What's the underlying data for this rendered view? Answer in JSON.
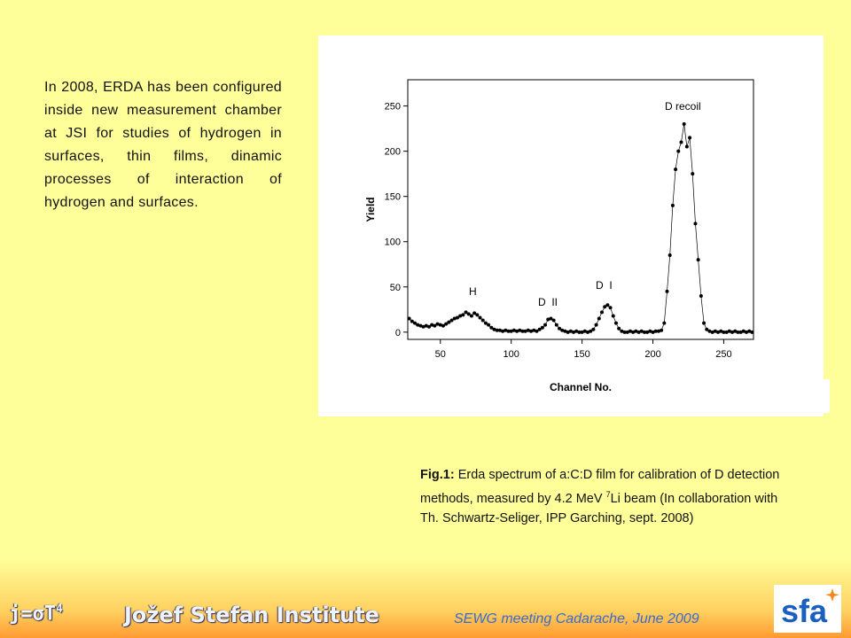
{
  "body_text": "In 2008, ERDA has been configured inside new measurement chamber at JSI for studies of hydrogen in surfaces, thin films, dinamic processes of interaction of hydrogen and surfaces.",
  "caption": {
    "label": "Fig.1:",
    "text_before": " Erda spectrum of a:C:D film for calibration of D detection methods, measured by 4.2 MeV ",
    "superscript": "7",
    "text_after": "Li beam (In collaboration with Th. Schwartz-Seliger, IPP Garching, sept. 2008)"
  },
  "footer": {
    "formula": "j=σT",
    "formula_superscript": "4",
    "institute": "Jožef Stefan Institute",
    "meeting": "SEWG meeting Cadarache, June 2009",
    "logo": "sfa"
  },
  "chart_data": {
    "type": "line",
    "xlabel": "Channel No.",
    "ylabel": "Yield",
    "xlim": [
      27,
      271
    ],
    "ylim": [
      -8,
      279
    ],
    "xticks": [
      50,
      100,
      150,
      200,
      250
    ],
    "yticks": [
      0,
      50,
      100,
      150,
      200,
      250
    ],
    "annotations": [
      "D recoil",
      "H",
      "D  II",
      "D  I"
    ],
    "x": [
      28,
      30,
      32,
      34,
      36,
      38,
      40,
      42,
      44,
      46,
      48,
      50,
      52,
      54,
      56,
      58,
      60,
      62,
      64,
      66,
      68,
      70,
      72,
      74,
      76,
      78,
      80,
      82,
      84,
      86,
      88,
      90,
      92,
      94,
      96,
      98,
      100,
      102,
      104,
      106,
      108,
      110,
      112,
      114,
      116,
      118,
      120,
      122,
      124,
      126,
      128,
      130,
      132,
      134,
      136,
      138,
      140,
      142,
      144,
      146,
      148,
      150,
      152,
      154,
      156,
      158,
      160,
      162,
      164,
      166,
      168,
      170,
      172,
      174,
      176,
      178,
      180,
      182,
      184,
      186,
      188,
      190,
      192,
      194,
      196,
      198,
      200,
      202,
      204,
      206,
      208,
      210,
      212,
      214,
      216,
      218,
      220,
      222,
      224,
      226,
      228,
      230,
      232,
      234,
      236,
      238,
      240,
      242,
      244,
      246,
      248,
      250,
      252,
      254,
      256,
      258,
      260,
      262,
      264,
      266,
      268,
      270
    ],
    "series": [
      {
        "color": "#000000",
        "values": [
          15,
          12,
          10,
          8,
          7,
          6,
          7,
          6,
          8,
          7,
          9,
          8,
          7,
          9,
          11,
          13,
          15,
          16,
          18,
          19,
          22,
          20,
          18,
          21,
          19,
          16,
          13,
          10,
          8,
          5,
          3,
          2,
          2,
          1,
          2,
          1,
          1,
          2,
          1,
          2,
          1,
          1,
          2,
          1,
          2,
          1,
          3,
          5,
          8,
          14,
          15,
          13,
          8,
          4,
          2,
          1,
          0,
          1,
          0,
          1,
          0,
          0,
          1,
          0,
          1,
          3,
          8,
          15,
          22,
          28,
          30,
          27,
          18,
          10,
          4,
          1,
          0,
          0,
          1,
          0,
          1,
          0,
          1,
          0,
          0,
          1,
          0,
          1,
          1,
          2,
          10,
          45,
          85,
          140,
          180,
          200,
          210,
          230,
          205,
          215,
          175,
          120,
          80,
          40,
          10,
          3,
          1,
          0,
          1,
          0,
          1,
          0,
          0,
          1,
          0,
          1,
          0,
          0,
          1,
          0,
          1,
          0
        ]
      }
    ]
  }
}
